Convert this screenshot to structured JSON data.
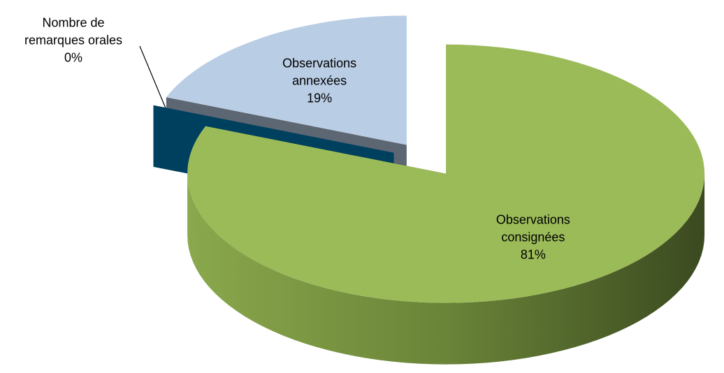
{
  "chart_data": {
    "type": "pie3d",
    "categories": [
      "Observations consignées",
      "Nombre de remarques orales",
      "Observations annexées"
    ],
    "values": [
      81,
      0,
      19
    ],
    "value_labels": [
      "81%",
      "0%",
      "19%"
    ],
    "colors": [
      "#9bbb59",
      "#00405f",
      "#b9cde5"
    ]
  }
}
